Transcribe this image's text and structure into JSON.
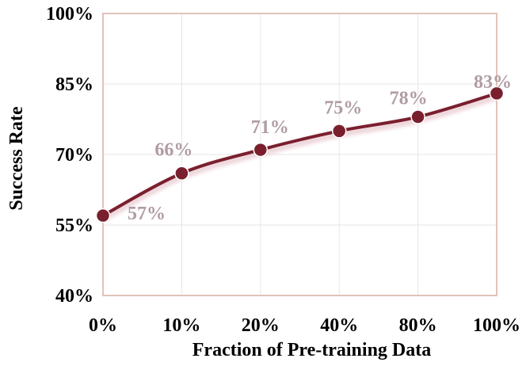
{
  "chart_data": {
    "type": "line",
    "title": "",
    "xlabel": "Fraction of Pre-training Data",
    "ylabel": "Success Rate",
    "categories": [
      "0%",
      "10%",
      "20%",
      "40%",
      "80%",
      "100%"
    ],
    "series": [
      {
        "values": [
          57,
          66,
          71,
          75,
          78,
          83
        ],
        "labels": [
          "57%",
          "66%",
          "71%",
          "75%",
          "78%",
          "83%"
        ]
      }
    ],
    "ylim": [
      40,
      100
    ],
    "yticks": [
      40,
      55,
      70,
      85,
      100
    ],
    "ytick_labels": [
      "40%",
      "55%",
      "70%",
      "85%",
      "100%"
    ],
    "grid": true,
    "legend": "none",
    "colors": {
      "line": "#7a1f2e",
      "marker": "#7a1f2e",
      "marker_edge": "#ffffff",
      "data_label": "#b09ca3",
      "frame": "#e2c2b8",
      "grid": "#e6e6e6"
    }
  }
}
